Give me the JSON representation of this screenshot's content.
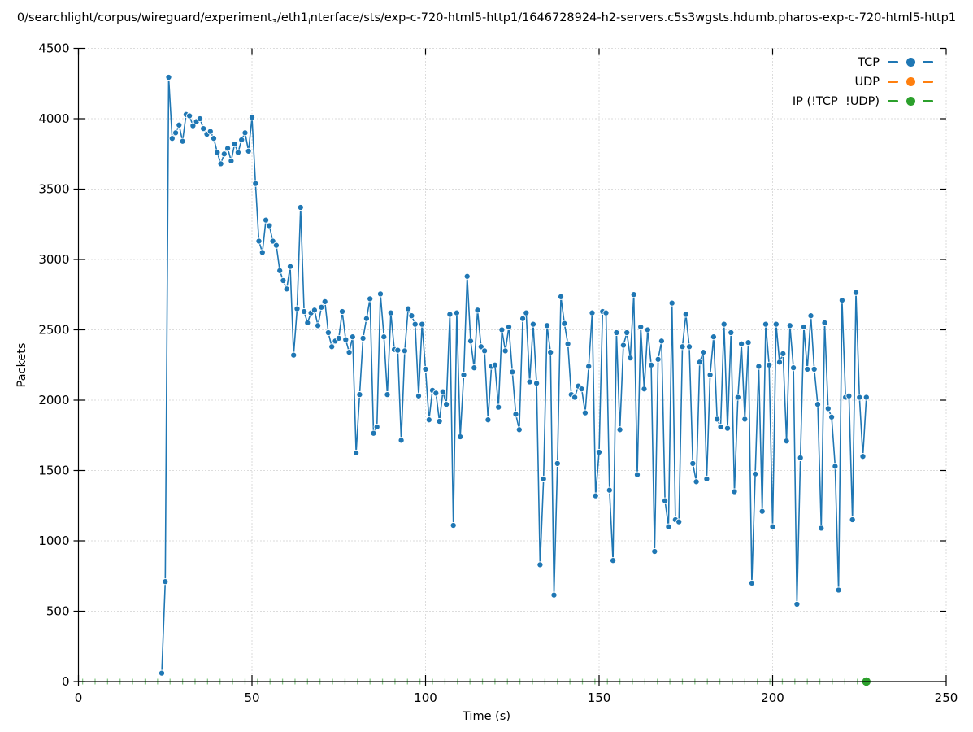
{
  "title": {
    "part1": "0/searchlight/corpus/wireguard/experiment",
    "sub1": "3",
    "part2": "/eth1",
    "sub2": "i",
    "part3": "nterface/sts/exp-c-720-html5-http1/1646728924-h2-servers.c5s3wgsts.hdumb.pharos-exp-c-720-html5-http1"
  },
  "axes": {
    "xlabel": "Time (s)",
    "ylabel": "Packets",
    "xlim": [
      0,
      250
    ],
    "ylim": [
      0,
      4500
    ],
    "x_ticks": [
      0,
      50,
      100,
      150,
      200,
      250
    ],
    "y_ticks": [
      0,
      500,
      1000,
      1500,
      2000,
      2500,
      3000,
      3500,
      4000,
      4500
    ],
    "grid": "dotted"
  },
  "legend": {
    "position": "top-right",
    "items": [
      {
        "label": "TCP",
        "color": "#1f77b4"
      },
      {
        "label": "UDP",
        "color": "#ff7f0e"
      },
      {
        "label": "IP (!TCP  !UDP)",
        "color": "#2ca02c"
      }
    ]
  },
  "colors": {
    "tcp": "#1f77b4",
    "udp": "#ff7f0e",
    "ip": "#2ca02c",
    "grid": "#b8b8b8",
    "axis": "#000000",
    "text": "#000000",
    "marker_edge": "#ffffff"
  },
  "chart_data": {
    "type": "line",
    "title": "0/searchlight/corpus/wireguard/experiment_3/eth1_interface/sts/exp-c-720-html5-http1/1646728924-h2-servers.c5s3wgsts.hdumb.pharos-exp-c-720-html5-http1",
    "xlabel": "Time (s)",
    "ylabel": "Packets",
    "xlim": [
      0,
      250
    ],
    "ylim": [
      0,
      4500
    ],
    "grid": "dotted",
    "legend_position": "upper right",
    "series": [
      {
        "name": "TCP",
        "color": "#1f77b4",
        "style": "line-with-circle-markers",
        "x": [
          24,
          25,
          26,
          27,
          28,
          29,
          30,
          31,
          32,
          33,
          34,
          35,
          36,
          37,
          38,
          39,
          40,
          41,
          42,
          43,
          44,
          45,
          46,
          47,
          48,
          49,
          50,
          51,
          52,
          53,
          54,
          55,
          56,
          57,
          58,
          59,
          60,
          61,
          62,
          63,
          64,
          65,
          66,
          67,
          68,
          69,
          70,
          71,
          72,
          73,
          74,
          75,
          76,
          77,
          78,
          79,
          80,
          81,
          82,
          83,
          84,
          85,
          86,
          87,
          88,
          89,
          90,
          91,
          92,
          93,
          94,
          95,
          96,
          97,
          98,
          99,
          100,
          101,
          102,
          103,
          104,
          105,
          106,
          107,
          108,
          109,
          110,
          111,
          112,
          113,
          114,
          115,
          116,
          117,
          118,
          119,
          120,
          121,
          122,
          123,
          124,
          125,
          126,
          127,
          128,
          129,
          130,
          131,
          132,
          133,
          134,
          135,
          136,
          137,
          138,
          139,
          140,
          141,
          142,
          143,
          144,
          145,
          146,
          147,
          148,
          149,
          150,
          151,
          152,
          153,
          154,
          155,
          156,
          157,
          158,
          159,
          160,
          161,
          162,
          163,
          164,
          165,
          166,
          167,
          168,
          169,
          170,
          171,
          172,
          173,
          174,
          175,
          176,
          177,
          178,
          179,
          180,
          181,
          182,
          183,
          184,
          185,
          186,
          187,
          188,
          189,
          190,
          191,
          192,
          193,
          194,
          195,
          196,
          197,
          198,
          199,
          200,
          201,
          202,
          203,
          204,
          205,
          206,
          207,
          208,
          209,
          210,
          211,
          212,
          213,
          214,
          215,
          216,
          217,
          218,
          219,
          220,
          221,
          222,
          223,
          224,
          225,
          226,
          227
        ],
        "y": [
          60,
          710,
          4295,
          3860,
          3900,
          3955,
          3840,
          4030,
          4020,
          3950,
          3980,
          4000,
          3930,
          3890,
          3910,
          3860,
          3760,
          3680,
          3750,
          3790,
          3700,
          3820,
          3760,
          3850,
          3900,
          3770,
          4010,
          3540,
          3130,
          3050,
          3280,
          3240,
          3130,
          3100,
          2920,
          2850,
          2790,
          2950,
          2320,
          2650,
          3370,
          2630,
          2550,
          2620,
          2640,
          2530,
          2660,
          2700,
          2480,
          2380,
          2420,
          2440,
          2630,
          2430,
          2340,
          2450,
          1625,
          2040,
          2440,
          2580,
          2720,
          1765,
          1810,
          2755,
          2450,
          2040,
          2620,
          2360,
          2355,
          1715,
          2350,
          2650,
          2600,
          2540,
          2030,
          2540,
          2220,
          1860,
          2070,
          2050,
          1850,
          2060,
          1970,
          2610,
          1110,
          2620,
          1740,
          2180,
          2880,
          2420,
          2230,
          2640,
          2380,
          2350,
          1860,
          2240,
          2250,
          1950,
          2500,
          2350,
          2520,
          2200,
          1900,
          1790,
          2580,
          2620,
          2130,
          2540,
          2120,
          830,
          1440,
          2530,
          2340,
          615,
          1550,
          2735,
          2545,
          2400,
          2040,
          2020,
          2100,
          2080,
          1910,
          2240,
          2620,
          1320,
          1630,
          2630,
          2620,
          1360,
          860,
          2480,
          1790,
          2390,
          2480,
          2300,
          2750,
          1470,
          2520,
          2080,
          2500,
          2250,
          925,
          2290,
          2420,
          1285,
          1100,
          2690,
          1150,
          1135,
          2380,
          2610,
          2380,
          1550,
          1420,
          2270,
          2340,
          1440,
          2180,
          2450,
          1865,
          1810,
          2540,
          1800,
          2480,
          1350,
          2020,
          2400,
          1865,
          2410,
          700,
          1475,
          2240,
          1210,
          2540,
          2250,
          1100,
          2540,
          2270,
          2330,
          1710,
          2530,
          2230,
          550,
          1590,
          2520,
          2220,
          2600,
          2220,
          1970,
          1090,
          2550,
          1940,
          1880,
          1530,
          650,
          2710,
          2020,
          2030,
          1150,
          2765,
          2020,
          1600,
          2020
        ]
      },
      {
        "name": "UDP",
        "color": "#ff7f0e",
        "style": "line-with-circle-markers",
        "x": [
          0,
          227
        ],
        "y": [
          0,
          0
        ],
        "note": "constant zero; completely hidden under the IP series on the x-axis"
      },
      {
        "name": "IP (!TCP  !UDP)",
        "color": "#2ca02c",
        "style": "line-with-circle-markers",
        "x": [
          0,
          227
        ],
        "y": [
          0,
          0
        ],
        "zero_tick_interval": 3.6,
        "last_marker_t": 227,
        "note": "zero line drawn along the x-axis with small green marks; one full marker visible at t=227"
      }
    ]
  }
}
